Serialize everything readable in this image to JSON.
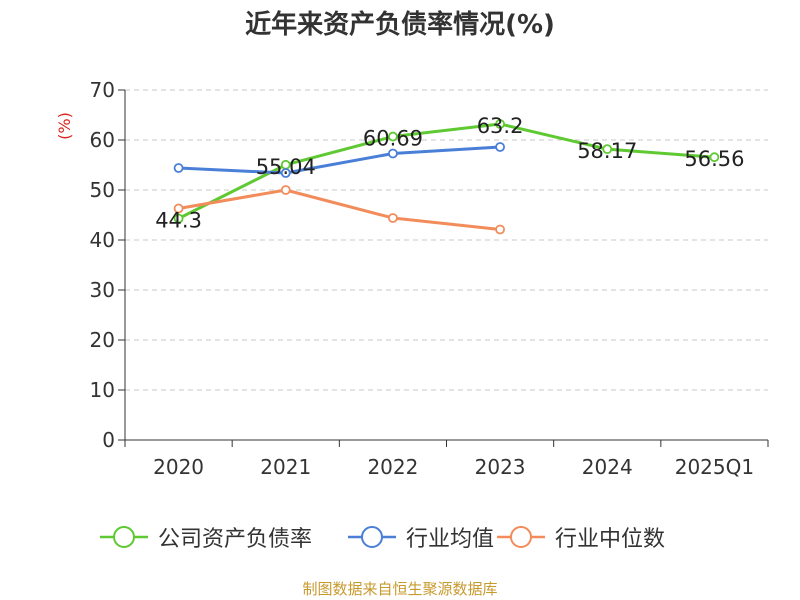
{
  "chart_data": {
    "type": "line",
    "title": "近年来资产负债率情况(%)",
    "ylabel": "(%)",
    "xlabel": "",
    "categories": [
      "2020",
      "2021",
      "2022",
      "2023",
      "2024",
      "2025Q1"
    ],
    "ylim": [
      0,
      70
    ],
    "yticks": [
      0,
      10,
      20,
      30,
      40,
      50,
      60,
      70
    ],
    "grid": true,
    "legend_position": "bottom",
    "series": [
      {
        "name": "公司资产负债率",
        "color": "#5fc932",
        "values": [
          44.3,
          55.04,
          60.69,
          63.2,
          58.17,
          56.56
        ],
        "labels": [
          "44.3",
          "55.04",
          "60.69",
          "63.2",
          "58.17",
          "56.56"
        ]
      },
      {
        "name": "行业均值",
        "color": "#4a7fd8",
        "values": [
          54.4,
          53.4,
          57.3,
          58.6,
          null,
          null
        ]
      },
      {
        "name": "行业中位数",
        "color": "#f28c5a",
        "values": [
          46.3,
          50.0,
          44.4,
          42.1,
          null,
          null
        ]
      }
    ]
  },
  "source": "制图数据来自恒生聚源数据库"
}
